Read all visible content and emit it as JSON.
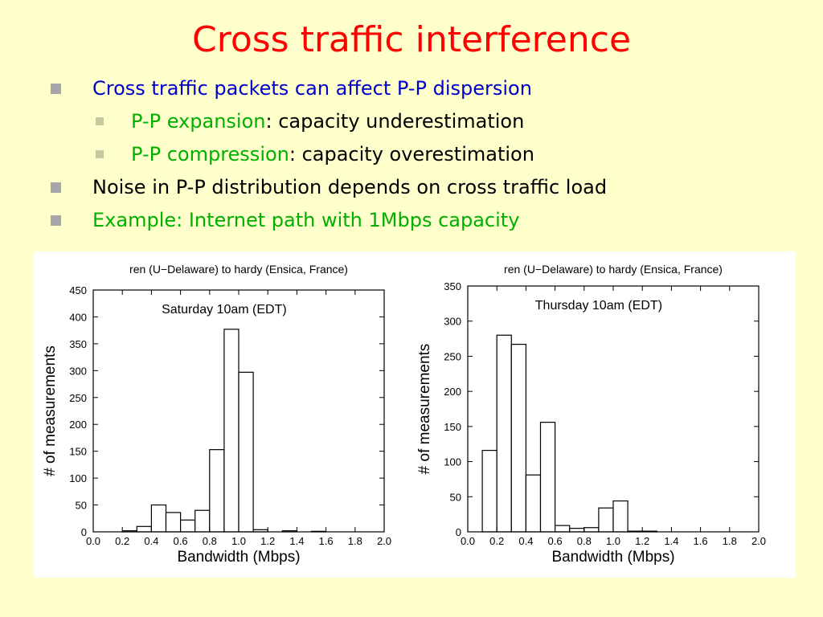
{
  "slide": {
    "title": "Cross traffic interference",
    "colors": {
      "title": "#FF0000",
      "blue": "#0000CC",
      "green": "#00B000",
      "black": "#000000"
    },
    "bullets": [
      {
        "level": 1,
        "parts": [
          {
            "text": "Cross traffic packets can affect P-P dispersion",
            "color": "blue"
          }
        ]
      },
      {
        "level": 2,
        "parts": [
          {
            "text": "P-P expansion",
            "color": "green"
          },
          {
            "text": ": capacity underestimation",
            "color": "black"
          }
        ]
      },
      {
        "level": 2,
        "parts": [
          {
            "text": "P-P compression",
            "color": "green"
          },
          {
            "text": ": capacity overestimation",
            "color": "black"
          }
        ]
      },
      {
        "level": 1,
        "parts": [
          {
            "text": "Noise in P-P distribution depends on cross traffic load",
            "color": "black"
          }
        ]
      },
      {
        "level": 1,
        "parts": [
          {
            "text": "Example: Internet path with 1Mbps capacity",
            "color": "green"
          }
        ]
      }
    ]
  },
  "chart_data": [
    {
      "type": "bar",
      "title": "ren (U−Delaware) to hardy (Ensica, France)",
      "annotation": "Saturday 10am  (EDT)",
      "xlabel": "Bandwidth (Mbps)",
      "ylabel": "# of measurements",
      "xlim": [
        0,
        2
      ],
      "ylim": [
        0,
        450
      ],
      "bin_width": 0.1,
      "xticks": [
        "0.0",
        "0.2",
        "0.4",
        "0.6",
        "0.8",
        "1.0",
        "1.2",
        "1.4",
        "1.6",
        "1.8",
        "2.0"
      ],
      "yticks": [
        "0",
        "50",
        "100",
        "150",
        "200",
        "250",
        "300",
        "350",
        "400",
        "450"
      ],
      "bins": [
        {
          "x": 0.2,
          "y": 2
        },
        {
          "x": 0.3,
          "y": 10
        },
        {
          "x": 0.4,
          "y": 50
        },
        {
          "x": 0.5,
          "y": 36
        },
        {
          "x": 0.6,
          "y": 22
        },
        {
          "x": 0.7,
          "y": 40
        },
        {
          "x": 0.8,
          "y": 153
        },
        {
          "x": 0.9,
          "y": 377
        },
        {
          "x": 1.0,
          "y": 297
        },
        {
          "x": 1.1,
          "y": 4
        },
        {
          "x": 1.3,
          "y": 2
        },
        {
          "x": 1.5,
          "y": 1
        }
      ]
    },
    {
      "type": "bar",
      "title": "ren (U−Delaware) to hardy (Ensica, France)",
      "annotation": "Thursday 10am  (EDT)",
      "xlabel": "Bandwidth (Mbps)",
      "ylabel": "# of measurements",
      "xlim": [
        0,
        2
      ],
      "ylim": [
        0,
        350
      ],
      "bin_width": 0.1,
      "xticks": [
        "0.0",
        "0.2",
        "0.4",
        "0.6",
        "0.8",
        "1.0",
        "1.2",
        "1.4",
        "1.6",
        "1.8",
        "2.0"
      ],
      "yticks": [
        "0",
        "50",
        "100",
        "150",
        "200",
        "250",
        "300",
        "350"
      ],
      "bins": [
        {
          "x": 0.1,
          "y": 116
        },
        {
          "x": 0.2,
          "y": 280
        },
        {
          "x": 0.3,
          "y": 267
        },
        {
          "x": 0.4,
          "y": 81
        },
        {
          "x": 0.5,
          "y": 156
        },
        {
          "x": 0.6,
          "y": 9
        },
        {
          "x": 0.7,
          "y": 5
        },
        {
          "x": 0.8,
          "y": 6
        },
        {
          "x": 0.9,
          "y": 34
        },
        {
          "x": 1.0,
          "y": 44
        },
        {
          "x": 1.1,
          "y": 1
        },
        {
          "x": 1.2,
          "y": 1
        }
      ]
    }
  ]
}
